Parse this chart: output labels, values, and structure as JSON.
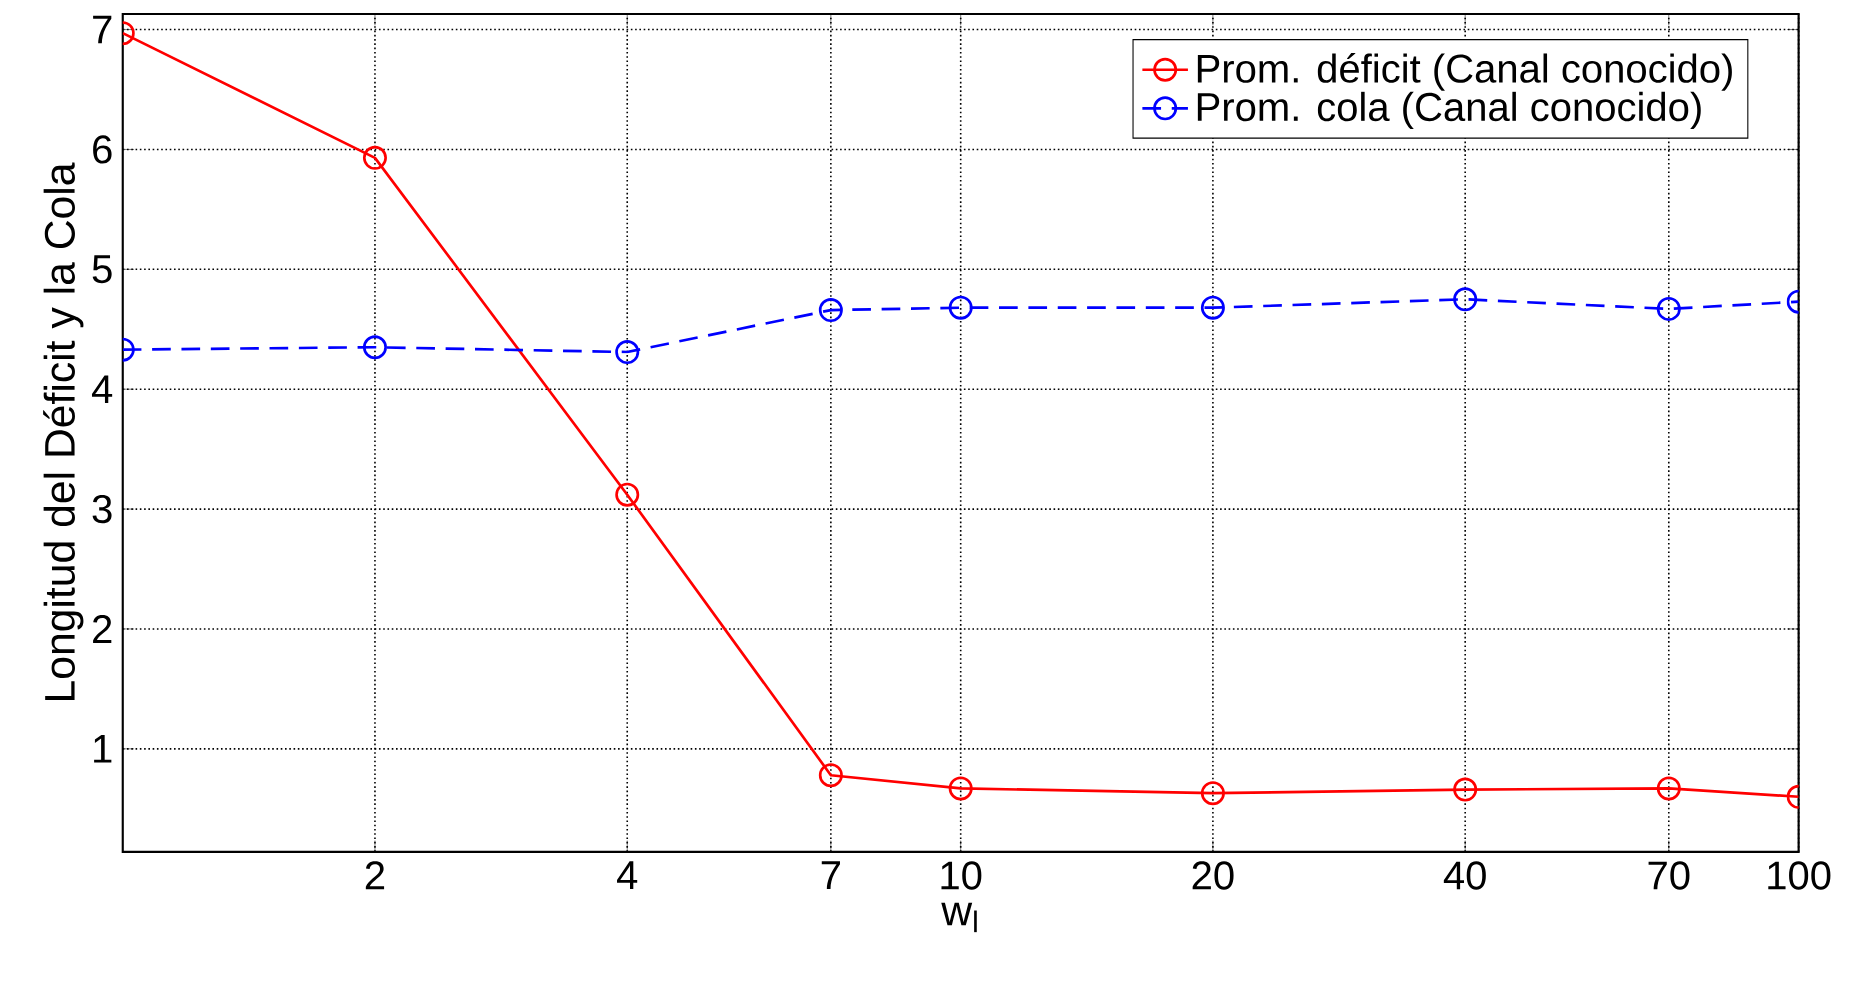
{
  "chart_data": {
    "type": "line",
    "xlabel": "w$_{l}$",
    "ylabel": "Longitud del Déficit y la Cola",
    "x": [
      1,
      2,
      4,
      7,
      10,
      20,
      40,
      70,
      100
    ],
    "series": [
      {
        "name": "Prom. déficit (Canal conocido)",
        "color": "#ff0000",
        "line_style": "solid",
        "values": [
          6.97,
          5.93,
          3.12,
          0.78,
          0.67,
          0.63,
          0.66,
          0.67,
          0.6
        ]
      },
      {
        "name": "Prom. cola (Canal conocido)",
        "color": "#0000ff",
        "line_style": "dashed",
        "values": [
          4.33,
          4.35,
          4.31,
          4.66,
          4.68,
          4.68,
          4.75,
          4.67,
          4.73
        ]
      }
    ],
    "log": "x",
    "xlim": [
      1,
      100
    ],
    "ylim": [
      0.14,
      7.13
    ],
    "xticks": [
      2,
      4,
      7,
      10,
      20,
      40,
      70,
      100
    ],
    "yticks": [
      1,
      2,
      3,
      4,
      5,
      6,
      7
    ],
    "grid": true,
    "legend": "top right",
    "marker": "circle"
  }
}
